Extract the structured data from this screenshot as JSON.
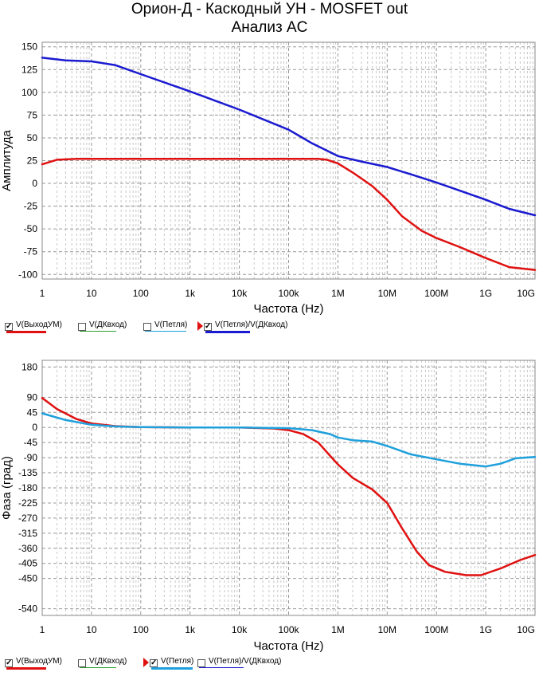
{
  "title_line1": "Орион-Д - Каскодный УН - MOSFET out",
  "title_line2": "Анализ AC",
  "colors": {
    "output": "#e01010",
    "input": "#30a030",
    "loop": "#1ea0dc",
    "ratio": "#1a1ad0"
  },
  "chart_data": [
    {
      "type": "line",
      "xscale": "log",
      "xlim": [
        1,
        10000000000
      ],
      "xticks": [
        {
          "v": 1,
          "label": "1"
        },
        {
          "v": 10,
          "label": "10"
        },
        {
          "v": 100,
          "label": "100"
        },
        {
          "v": 1000,
          "label": "1k"
        },
        {
          "v": 10000,
          "label": "10k"
        },
        {
          "v": 100000,
          "label": "100k"
        },
        {
          "v": 1000000,
          "label": "1M"
        },
        {
          "v": 10000000,
          "label": "10M"
        },
        {
          "v": 100000000,
          "label": "100M"
        },
        {
          "v": 1000000000,
          "label": "1G"
        },
        {
          "v": 10000000000,
          "label": "10G"
        }
      ],
      "ylim": [
        -105,
        155
      ],
      "yticks": [
        150,
        125,
        100,
        75,
        50,
        25,
        0,
        -25,
        -50,
        -75,
        -100
      ],
      "xlabel": "Частота (Hz)",
      "ylabel": "Амплитуда",
      "series": [
        {
          "name": "V(ВыходУМ)",
          "color_key": "output",
          "points": [
            [
              1,
              21
            ],
            [
              2,
              26
            ],
            [
              5,
              27
            ],
            [
              10,
              27
            ],
            [
              100,
              27
            ],
            [
              1000,
              27
            ],
            [
              10000,
              27
            ],
            [
              100000,
              27
            ],
            [
              400000,
              27
            ],
            [
              600000,
              26
            ],
            [
              1000000,
              22
            ],
            [
              2000000,
              12
            ],
            [
              5000000,
              -3
            ],
            [
              10000000,
              -18
            ],
            [
              20000000,
              -36
            ],
            [
              50000000,
              -52
            ],
            [
              100000000,
              -60
            ],
            [
              300000000,
              -70
            ],
            [
              1000000000,
              -82
            ],
            [
              3000000000,
              -92
            ],
            [
              10000000000,
              -95
            ]
          ]
        },
        {
          "name": "V(Петля)/V(ДКвход)",
          "color_key": "ratio",
          "points": [
            [
              1,
              138
            ],
            [
              3,
              135
            ],
            [
              10,
              134
            ],
            [
              30,
              130
            ],
            [
              100,
              120
            ],
            [
              1000,
              101
            ],
            [
              10000,
              81
            ],
            [
              100000,
              59
            ],
            [
              300000,
              44
            ],
            [
              1000000,
              30
            ],
            [
              3000000,
              24
            ],
            [
              10000000,
              18
            ],
            [
              30000000,
              10
            ],
            [
              100000000,
              1
            ],
            [
              300000000,
              -8
            ],
            [
              1000000000,
              -18
            ],
            [
              3000000000,
              -28
            ],
            [
              10000000000,
              -35
            ]
          ]
        }
      ],
      "legend": [
        {
          "label": "V(ВыходУМ)",
          "checked": true,
          "color_key": "output",
          "marker": false
        },
        {
          "label": "V(ДКвход)",
          "checked": false,
          "color_key": "input",
          "marker": false
        },
        {
          "label": "V(Петля)",
          "checked": false,
          "color_key": "loop",
          "marker": false
        },
        {
          "label": "V(Петля)/V(ДКвход)",
          "checked": true,
          "color_key": "ratio",
          "marker": true
        }
      ]
    },
    {
      "type": "line",
      "xscale": "log",
      "xlim": [
        1,
        10000000000
      ],
      "xticks": [
        {
          "v": 1,
          "label": "1"
        },
        {
          "v": 10,
          "label": "10"
        },
        {
          "v": 100,
          "label": "100"
        },
        {
          "v": 1000,
          "label": "1k"
        },
        {
          "v": 10000,
          "label": "10k"
        },
        {
          "v": 100000,
          "label": "100k"
        },
        {
          "v": 1000000,
          "label": "1M"
        },
        {
          "v": 10000000,
          "label": "10M"
        },
        {
          "v": 100000000,
          "label": "100M"
        },
        {
          "v": 1000000000,
          "label": "1G"
        },
        {
          "v": 10000000000,
          "label": "10G"
        }
      ],
      "ylim": [
        -560,
        200
      ],
      "yticks": [
        180,
        90,
        45,
        0,
        -45,
        -90,
        -135,
        -180,
        -225,
        -270,
        -315,
        -360,
        -405,
        -450,
        -540
      ],
      "xlabel": "Частота (Hz)",
      "ylabel": "Фаза (град)",
      "series": [
        {
          "name": "V(ВыходУМ)",
          "color_key": "output",
          "points": [
            [
              1,
              88
            ],
            [
              2,
              55
            ],
            [
              5,
              25
            ],
            [
              10,
              12
            ],
            [
              30,
              4
            ],
            [
              100,
              1
            ],
            [
              1000,
              0
            ],
            [
              10000,
              0
            ],
            [
              50000,
              -3
            ],
            [
              100000,
              -8
            ],
            [
              200000,
              -20
            ],
            [
              400000,
              -45
            ],
            [
              700000,
              -85
            ],
            [
              1000000,
              -110
            ],
            [
              2000000,
              -150
            ],
            [
              5000000,
              -185
            ],
            [
              10000000,
              -225
            ],
            [
              20000000,
              -300
            ],
            [
              40000000,
              -370
            ],
            [
              70000000,
              -410
            ],
            [
              150000000,
              -430
            ],
            [
              400000000,
              -440
            ],
            [
              800000000,
              -440
            ],
            [
              2000000000,
              -420
            ],
            [
              5000000000,
              -395
            ],
            [
              10000000000,
              -380
            ]
          ]
        },
        {
          "name": "V(Петля)",
          "color_key": "loop",
          "points": [
            [
              1,
              42
            ],
            [
              3,
              22
            ],
            [
              10,
              8
            ],
            [
              30,
              3
            ],
            [
              100,
              1
            ],
            [
              1000,
              0
            ],
            [
              10000,
              0
            ],
            [
              100000,
              -2
            ],
            [
              300000,
              -8
            ],
            [
              700000,
              -20
            ],
            [
              1000000,
              -30
            ],
            [
              2000000,
              -38
            ],
            [
              5000000,
              -42
            ],
            [
              10000000,
              -55
            ],
            [
              30000000,
              -80
            ],
            [
              100000000,
              -95
            ],
            [
              300000000,
              -108
            ],
            [
              1000000000,
              -116
            ],
            [
              2000000000,
              -108
            ],
            [
              4000000000,
              -92
            ],
            [
              10000000000,
              -88
            ]
          ]
        }
      ],
      "legend": [
        {
          "label": "V(ВыходУМ)",
          "checked": true,
          "color_key": "output",
          "marker": false
        },
        {
          "label": "V(ДКвход)",
          "checked": false,
          "color_key": "input",
          "marker": false
        },
        {
          "label": "V(Петля)",
          "checked": true,
          "color_key": "loop",
          "marker": true
        },
        {
          "label": "V(Петля)/V(ДКвход)",
          "checked": false,
          "color_key": "ratio",
          "marker": false
        }
      ]
    }
  ]
}
